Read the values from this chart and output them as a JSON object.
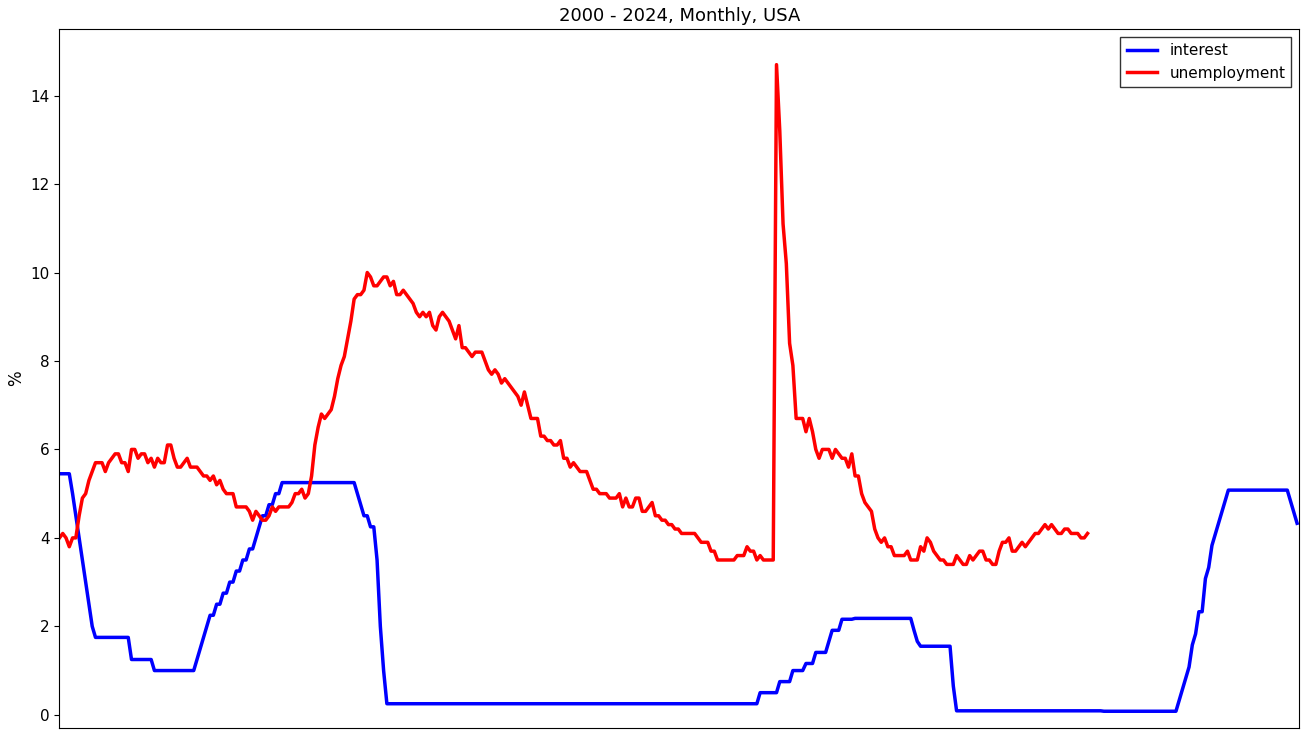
{
  "title": "2000 - 2024, Monthly, USA",
  "ylabel": "%",
  "line_interest_color": "blue",
  "line_unemployment_color": "red",
  "line_width": 2.5,
  "legend_labels": [
    "interest",
    "unemployment"
  ],
  "ylim": [
    -0.3,
    15.5
  ],
  "yticks": [
    0,
    2,
    4,
    6,
    8,
    10,
    12,
    14
  ],
  "interest_rate": [
    5.45,
    5.45,
    5.45,
    5.45,
    5.0,
    4.5,
    4.0,
    3.5,
    3.0,
    2.5,
    2.0,
    1.75,
    1.75,
    1.75,
    1.75,
    1.75,
    1.75,
    1.75,
    1.75,
    1.75,
    1.75,
    1.75,
    1.25,
    1.25,
    1.25,
    1.25,
    1.25,
    1.25,
    1.25,
    1.0,
    1.0,
    1.0,
    1.0,
    1.0,
    1.0,
    1.0,
    1.0,
    1.0,
    1.0,
    1.0,
    1.0,
    1.0,
    1.25,
    1.5,
    1.75,
    2.0,
    2.25,
    2.25,
    2.5,
    2.5,
    2.75,
    2.75,
    3.0,
    3.0,
    3.25,
    3.25,
    3.5,
    3.5,
    3.75,
    3.75,
    4.0,
    4.25,
    4.5,
    4.5,
    4.75,
    4.75,
    5.0,
    5.0,
    5.25,
    5.25,
    5.25,
    5.25,
    5.25,
    5.25,
    5.25,
    5.25,
    5.25,
    5.25,
    5.25,
    5.25,
    5.25,
    5.25,
    5.25,
    5.25,
    5.25,
    5.25,
    5.25,
    5.25,
    5.25,
    5.25,
    5.25,
    5.0,
    4.75,
    4.5,
    4.5,
    4.25,
    4.25,
    3.5,
    2.0,
    1.0,
    0.25,
    0.25,
    0.25,
    0.25,
    0.25,
    0.25,
    0.25,
    0.25,
    0.25,
    0.25,
    0.25,
    0.25,
    0.25,
    0.25,
    0.25,
    0.25,
    0.25,
    0.25,
    0.25,
    0.25,
    0.25,
    0.25,
    0.25,
    0.25,
    0.25,
    0.25,
    0.25,
    0.25,
    0.25,
    0.25,
    0.25,
    0.25,
    0.25,
    0.25,
    0.25,
    0.25,
    0.25,
    0.25,
    0.25,
    0.25,
    0.25,
    0.25,
    0.25,
    0.25,
    0.25,
    0.25,
    0.25,
    0.25,
    0.25,
    0.25,
    0.25,
    0.25,
    0.25,
    0.25,
    0.25,
    0.25,
    0.25,
    0.25,
    0.25,
    0.25,
    0.25,
    0.25,
    0.25,
    0.25,
    0.25,
    0.25,
    0.25,
    0.25,
    0.25,
    0.25,
    0.25,
    0.25,
    0.25,
    0.25,
    0.25,
    0.25,
    0.25,
    0.25,
    0.25,
    0.25,
    0.25,
    0.25,
    0.25,
    0.25,
    0.25,
    0.25,
    0.25,
    0.25,
    0.25,
    0.25,
    0.25,
    0.25,
    0.25,
    0.25,
    0.25,
    0.25,
    0.25,
    0.25,
    0.25,
    0.25,
    0.25,
    0.25,
    0.25,
    0.25,
    0.25,
    0.25,
    0.25,
    0.25,
    0.25,
    0.25,
    0.25,
    0.25,
    0.25,
    0.25,
    0.5,
    0.5,
    0.5,
    0.5,
    0.5,
    0.5,
    0.75,
    0.75,
    0.75,
    0.75,
    1.0,
    1.0,
    1.0,
    1.0,
    1.16,
    1.16,
    1.16,
    1.41,
    1.41,
    1.41,
    1.41,
    1.66,
    1.91,
    1.91,
    1.91,
    2.16,
    2.16,
    2.16,
    2.16,
    2.18,
    2.18,
    2.18,
    2.18,
    2.18,
    2.18,
    2.18,
    2.18,
    2.18,
    2.18,
    2.18,
    2.18,
    2.18,
    2.18,
    2.18,
    2.18,
    2.18,
    2.18,
    1.91,
    1.66,
    1.55,
    1.55,
    1.55,
    1.55,
    1.55,
    1.55,
    1.55,
    1.55,
    1.55,
    1.55,
    0.65,
    0.09,
    0.09,
    0.09,
    0.09,
    0.09,
    0.09,
    0.09,
    0.09,
    0.09,
    0.09,
    0.09,
    0.09,
    0.09,
    0.09,
    0.09,
    0.09,
    0.09,
    0.09,
    0.09,
    0.09,
    0.09,
    0.09,
    0.09,
    0.09,
    0.09,
    0.09,
    0.09,
    0.09,
    0.09,
    0.09,
    0.09,
    0.09,
    0.09,
    0.09,
    0.09,
    0.09,
    0.09,
    0.09,
    0.09,
    0.09,
    0.09,
    0.09,
    0.09,
    0.09,
    0.09,
    0.08,
    0.08,
    0.08,
    0.08,
    0.08,
    0.08,
    0.08,
    0.08,
    0.08,
    0.08,
    0.08,
    0.08,
    0.08,
    0.08,
    0.08,
    0.08,
    0.08,
    0.08,
    0.08,
    0.08,
    0.08,
    0.08,
    0.08,
    0.33,
    0.58,
    0.83,
    1.08,
    1.58,
    1.83,
    2.33,
    2.33,
    3.08,
    3.33,
    3.83,
    4.08,
    4.33,
    4.58,
    4.83,
    5.08,
    5.08,
    5.08,
    5.08,
    5.08,
    5.08,
    5.08,
    5.08,
    5.08,
    5.08,
    5.08,
    5.08,
    5.08,
    5.08,
    5.08,
    5.08,
    5.08,
    5.08,
    5.08,
    4.83,
    4.58,
    4.33
  ],
  "unemployment_rate": [
    4.0,
    4.1,
    4.0,
    3.8,
    4.0,
    4.0,
    4.5,
    4.9,
    5.0,
    5.3,
    5.5,
    5.7,
    5.7,
    5.7,
    5.5,
    5.7,
    5.8,
    5.9,
    5.9,
    5.7,
    5.7,
    5.5,
    6.0,
    6.0,
    5.8,
    5.9,
    5.9,
    5.7,
    5.8,
    5.6,
    5.8,
    5.7,
    5.7,
    6.1,
    6.1,
    5.8,
    5.6,
    5.6,
    5.7,
    5.8,
    5.6,
    5.6,
    5.6,
    5.5,
    5.4,
    5.4,
    5.3,
    5.4,
    5.2,
    5.3,
    5.1,
    5.0,
    5.0,
    5.0,
    4.7,
    4.7,
    4.7,
    4.7,
    4.6,
    4.4,
    4.6,
    4.5,
    4.4,
    4.4,
    4.5,
    4.7,
    4.6,
    4.7,
    4.7,
    4.7,
    4.7,
    4.8,
    5.0,
    5.0,
    5.1,
    4.9,
    5.0,
    5.4,
    6.1,
    6.5,
    6.8,
    6.7,
    6.8,
    6.9,
    7.2,
    7.6,
    7.9,
    8.1,
    8.5,
    8.9,
    9.4,
    9.5,
    9.5,
    9.6,
    10.0,
    9.9,
    9.7,
    9.7,
    9.8,
    9.9,
    9.9,
    9.7,
    9.8,
    9.5,
    9.5,
    9.6,
    9.5,
    9.4,
    9.3,
    9.1,
    9.0,
    9.1,
    9.0,
    9.1,
    8.8,
    8.7,
    9.0,
    9.1,
    9.0,
    8.9,
    8.7,
    8.5,
    8.8,
    8.3,
    8.3,
    8.2,
    8.1,
    8.2,
    8.2,
    8.2,
    8.0,
    7.8,
    7.7,
    7.8,
    7.7,
    7.5,
    7.6,
    7.5,
    7.4,
    7.3,
    7.2,
    7.0,
    7.3,
    7.0,
    6.7,
    6.7,
    6.7,
    6.3,
    6.3,
    6.2,
    6.2,
    6.1,
    6.1,
    6.2,
    5.8,
    5.8,
    5.6,
    5.7,
    5.6,
    5.5,
    5.5,
    5.5,
    5.3,
    5.1,
    5.1,
    5.0,
    5.0,
    5.0,
    4.9,
    4.9,
    4.9,
    5.0,
    4.7,
    4.9,
    4.7,
    4.7,
    4.9,
    4.9,
    4.6,
    4.6,
    4.7,
    4.8,
    4.5,
    4.5,
    4.4,
    4.4,
    4.3,
    4.3,
    4.2,
    4.2,
    4.1,
    4.1,
    4.1,
    4.1,
    4.1,
    4.0,
    3.9,
    3.9,
    3.9,
    3.7,
    3.7,
    3.5,
    3.5,
    3.5,
    3.5,
    3.5,
    3.5,
    3.6,
    3.6,
    3.6,
    3.8,
    3.7,
    3.7,
    3.5,
    3.6,
    3.5,
    3.5,
    3.5,
    3.5,
    14.7,
    13.2,
    11.1,
    10.2,
    8.4,
    7.9,
    6.7,
    6.7,
    6.7,
    6.4,
    6.7,
    6.4,
    6.0,
    5.8,
    6.0,
    6.0,
    6.0,
    5.8,
    6.0,
    5.9,
    5.8,
    5.8,
    5.6,
    5.9,
    5.4,
    5.4,
    5.0,
    4.8,
    4.7,
    4.6,
    4.2,
    4.0,
    3.9,
    4.0,
    3.8,
    3.8,
    3.6,
    3.6,
    3.6,
    3.6,
    3.7,
    3.5,
    3.5,
    3.5,
    3.8,
    3.7,
    4.0,
    3.9,
    3.7,
    3.6,
    3.5,
    3.5,
    3.4,
    3.4,
    3.4,
    3.6,
    3.5,
    3.4,
    3.4,
    3.6,
    3.5,
    3.6,
    3.7,
    3.7,
    3.5,
    3.5,
    3.4,
    3.4,
    3.7,
    3.9,
    3.9,
    4.0,
    3.7,
    3.7,
    3.8,
    3.9,
    3.8,
    3.9,
    4.0,
    4.1,
    4.1,
    4.2,
    4.3,
    4.2,
    4.3,
    4.2,
    4.1,
    4.1,
    4.2,
    4.2,
    4.1,
    4.1,
    4.1,
    4.0,
    4.0,
    4.1
  ]
}
